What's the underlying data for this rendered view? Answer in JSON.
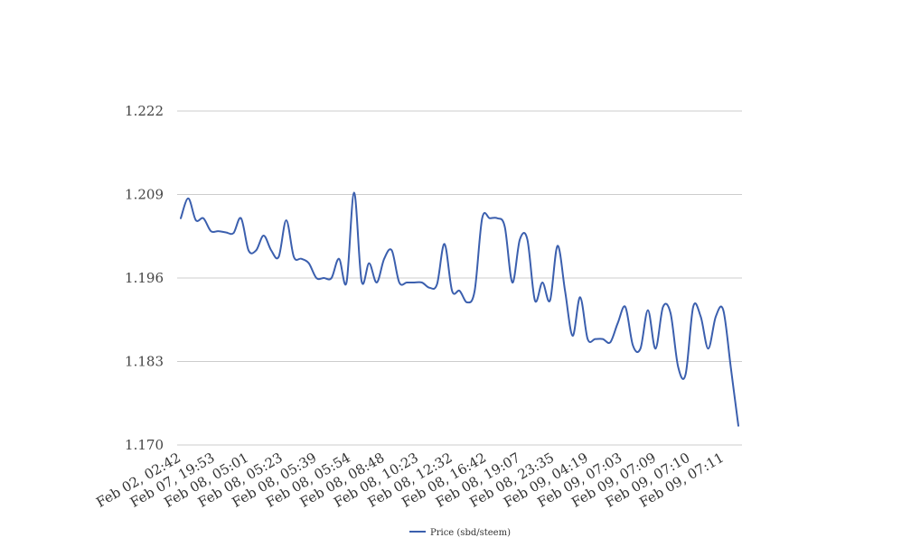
{
  "chart_data": {
    "type": "line",
    "title": "",
    "xlabel": "",
    "ylabel": "",
    "ylim": [
      1.17,
      1.222
    ],
    "yticks": [
      "1.222",
      "1.209",
      "1.196",
      "1.183",
      "1.170"
    ],
    "xticks": [
      "Feb 02, 02:42",
      "Feb 07, 19:53",
      "Feb 08, 05:01",
      "Feb 08, 05:23",
      "Feb 08, 05:39",
      "Feb 08, 05:54",
      "Feb 08, 08:48",
      "Feb 08, 10:23",
      "Feb 08, 12:32",
      "Feb 08, 16:42",
      "Feb 08, 19:07",
      "Feb 08, 23:35",
      "Feb 09, 04:19",
      "Feb 09, 07:03",
      "Feb 09, 07:09",
      "Feb 09, 07:10",
      "Feb 09, 07:11"
    ],
    "grid": true,
    "legend": "bottom-center",
    "colors": {
      "line": "#3b5fae",
      "grid": "#cccccc"
    },
    "series": [
      {
        "name": "Price (sbd/steem)",
        "values": [
          1.2053,
          1.2084,
          1.205,
          1.2053,
          1.2033,
          1.2033,
          1.2031,
          1.203,
          1.2053,
          1.2003,
          1.2003,
          1.2026,
          1.2003,
          1.1993,
          1.205,
          1.1993,
          1.199,
          1.1983,
          1.196,
          1.196,
          1.196,
          1.199,
          1.1953,
          1.2093,
          1.1955,
          1.1983,
          1.1953,
          1.199,
          1.2003,
          1.1953,
          1.1953,
          1.1953,
          1.1953,
          1.1945,
          1.195,
          1.2013,
          1.194,
          1.194,
          1.1922,
          1.194,
          1.2053,
          1.2053,
          1.2053,
          1.204,
          1.1953,
          1.202,
          1.202,
          1.1925,
          1.1953,
          1.1925,
          1.201,
          1.194,
          1.187,
          1.193,
          1.1865,
          1.1865,
          1.1865,
          1.186,
          1.189,
          1.1915,
          1.1855,
          1.185,
          1.191,
          1.185,
          1.1915,
          1.1905,
          1.1822,
          1.181,
          1.1915,
          1.19,
          1.185,
          1.19,
          1.191,
          1.182,
          1.173
        ]
      }
    ]
  }
}
